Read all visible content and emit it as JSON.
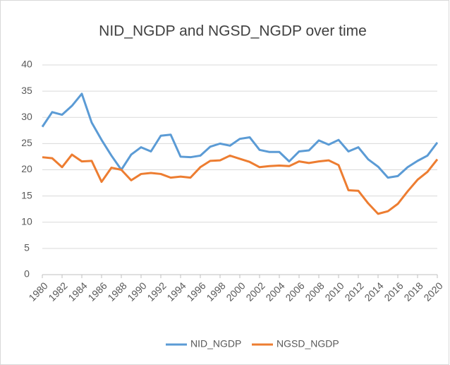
{
  "chart_data": {
    "type": "line",
    "title": "NID_NGDP and NGSD_NGDP over time",
    "x": [
      1980,
      1981,
      1982,
      1983,
      1984,
      1985,
      1986,
      1987,
      1988,
      1989,
      1990,
      1991,
      1992,
      1993,
      1994,
      1995,
      1996,
      1997,
      1998,
      1999,
      2000,
      2001,
      2002,
      2003,
      2004,
      2005,
      2006,
      2007,
      2008,
      2009,
      2010,
      2011,
      2012,
      2013,
      2014,
      2015,
      2016,
      2017,
      2018,
      2019,
      2020
    ],
    "series": [
      {
        "name": "NID_NGDP",
        "color": "#5b9bd5",
        "values": [
          28.2,
          31.0,
          30.5,
          32.2,
          34.5,
          29.0,
          25.7,
          22.7,
          20.0,
          22.9,
          24.3,
          23.5,
          26.5,
          26.7,
          22.5,
          22.4,
          22.7,
          24.4,
          25.0,
          24.6,
          25.9,
          26.2,
          23.8,
          23.4,
          23.4,
          21.6,
          23.5,
          23.7,
          25.6,
          24.8,
          25.7,
          23.5,
          24.3,
          22.0,
          20.6,
          18.5,
          18.8,
          20.5,
          21.7,
          22.7,
          25.2
        ]
      },
      {
        "name": "NGSD_NGDP",
        "color": "#ed7d31",
        "values": [
          22.4,
          22.2,
          20.5,
          22.9,
          21.6,
          21.7,
          17.7,
          20.4,
          20.0,
          18.0,
          19.2,
          19.4,
          19.2,
          18.5,
          18.7,
          18.5,
          20.5,
          21.7,
          21.8,
          22.7,
          22.1,
          21.5,
          20.5,
          20.7,
          20.8,
          20.7,
          21.6,
          21.3,
          21.6,
          21.8,
          20.9,
          16.1,
          16.0,
          13.6,
          11.6,
          12.1,
          13.5,
          15.9,
          18.1,
          19.6,
          22.0
        ]
      }
    ],
    "xlim": [
      1980,
      2020
    ],
    "xticks": [
      1980,
      1982,
      1984,
      1986,
      1988,
      1990,
      1992,
      1994,
      1996,
      1998,
      2000,
      2002,
      2004,
      2006,
      2008,
      2010,
      2012,
      2014,
      2016,
      2018,
      2020
    ],
    "ylim": [
      0,
      40
    ],
    "yticks": [
      0,
      5,
      10,
      15,
      20,
      25,
      30,
      35,
      40
    ],
    "grid": true,
    "legend": "bottom"
  }
}
